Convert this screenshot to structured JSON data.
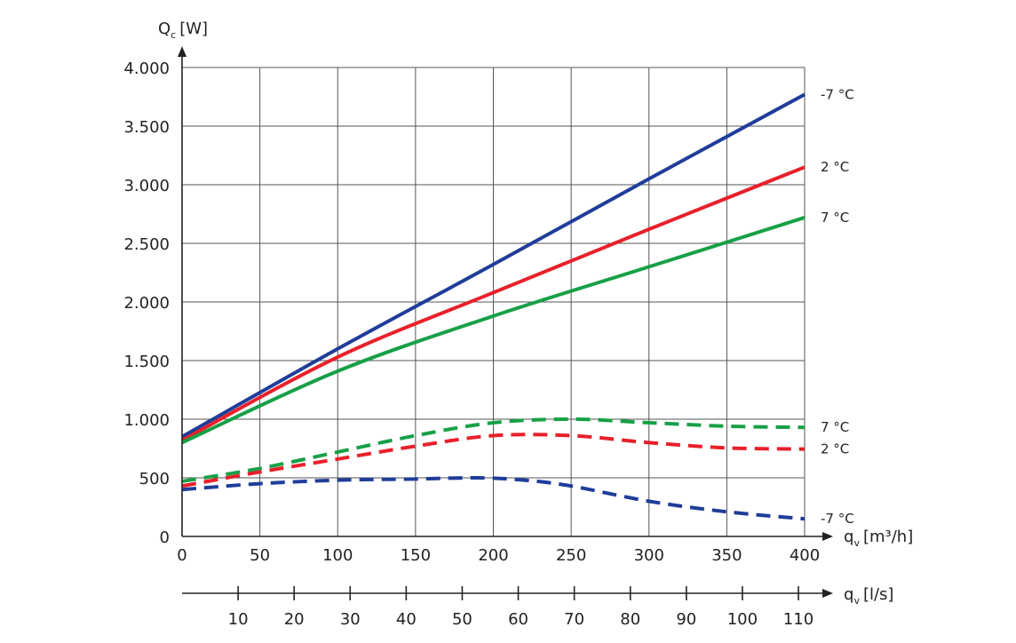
{
  "chart_data": {
    "type": "line",
    "y_axis": {
      "title_main": "Q",
      "title_sub": "c",
      "title_unit": "[W]",
      "range": [
        0,
        4000
      ],
      "ticks": [
        0,
        500,
        1000,
        1500,
        2000,
        2500,
        3000,
        3500,
        4000
      ],
      "tick_labels": [
        "0",
        "500",
        "1.000",
        "1.500",
        "2.000",
        "2.500",
        "3.000",
        "3.500",
        "4.000"
      ]
    },
    "x_axis": {
      "title_main": "q",
      "title_sub": "v",
      "title_unit": "[m³/h]",
      "range": [
        0,
        400
      ],
      "ticks": [
        0,
        50,
        100,
        150,
        200,
        250,
        300,
        350,
        400
      ],
      "tick_labels": [
        "0",
        "50",
        "100",
        "150",
        "200",
        "250",
        "300",
        "350",
        "400"
      ]
    },
    "x2_axis": {
      "title_main": "q",
      "title_sub": "v",
      "title_unit": "[l/s]",
      "ticks": [
        10,
        20,
        30,
        40,
        50,
        60,
        70,
        80,
        90,
        100,
        110
      ],
      "tick_labels": [
        "10",
        "20",
        "30",
        "40",
        "50",
        "60",
        "70",
        "80",
        "90",
        "100",
        "110"
      ]
    },
    "grid": true,
    "series": [
      {
        "label": "-7 °C",
        "color": "#1f3d99",
        "dash": false,
        "points": [
          [
            0,
            850
          ],
          [
            100,
            1600
          ],
          [
            200,
            2320
          ],
          [
            300,
            3050
          ],
          [
            400,
            3770
          ]
        ]
      },
      {
        "label": "2 °C",
        "color": "#e8202a",
        "dash": false,
        "points": [
          [
            0,
            820
          ],
          [
            100,
            1530
          ],
          [
            200,
            2080
          ],
          [
            300,
            2620
          ],
          [
            400,
            3150
          ]
        ]
      },
      {
        "label": "7 °C",
        "color": "#17a047",
        "dash": false,
        "points": [
          [
            0,
            800
          ],
          [
            100,
            1410
          ],
          [
            200,
            1880
          ],
          [
            300,
            2300
          ],
          [
            400,
            2720
          ]
        ]
      },
      {
        "label": "7 °C",
        "color": "#17a047",
        "dash": true,
        "points": [
          [
            0,
            470
          ],
          [
            50,
            580
          ],
          [
            100,
            720
          ],
          [
            150,
            860
          ],
          [
            200,
            970
          ],
          [
            250,
            1000
          ],
          [
            300,
            970
          ],
          [
            350,
            940
          ],
          [
            400,
            930
          ]
        ]
      },
      {
        "label": "2 °C",
        "color": "#e8202a",
        "dash": true,
        "points": [
          [
            0,
            430
          ],
          [
            50,
            550
          ],
          [
            100,
            660
          ],
          [
            150,
            770
          ],
          [
            200,
            860
          ],
          [
            250,
            860
          ],
          [
            300,
            800
          ],
          [
            350,
            755
          ],
          [
            400,
            745
          ]
        ]
      },
      {
        "label": "-7 °C",
        "color": "#1f3d99",
        "dash": true,
        "points": [
          [
            0,
            400
          ],
          [
            50,
            450
          ],
          [
            100,
            480
          ],
          [
            150,
            490
          ],
          [
            190,
            500
          ],
          [
            220,
            480
          ],
          [
            250,
            430
          ],
          [
            300,
            300
          ],
          [
            350,
            210
          ],
          [
            400,
            150
          ]
        ]
      }
    ]
  }
}
